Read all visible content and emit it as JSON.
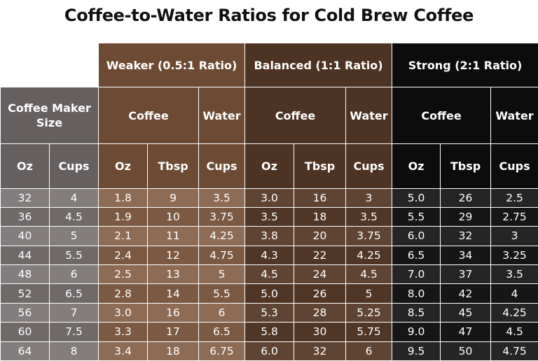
{
  "title": "Coffee-to-Water Ratios for Cold Brew Coffee",
  "colors": {
    "maker_header": "#665f5f",
    "maker_rows_a": "#847d7d",
    "maker_rows_b": "#706969",
    "weak_header": "#6c4a34",
    "weak_rows_a": "#8e6b55",
    "weak_rows_b": "#7b5943",
    "balanced_header": "#4d3323",
    "balanced_rows_a": "#5f4433",
    "balanced_rows_b": "#4f3627",
    "strong_header": "#0c0c0c",
    "strong_rows_a": "#252525",
    "strong_rows_b": "#161616"
  },
  "headers": {
    "groups": [
      "Weaker (0.5:1 Ratio)",
      "Balanced (1:1 Ratio)",
      "Strong (2:1 Ratio)"
    ],
    "maker_size": "Coffee Maker Size",
    "coffee": "Coffee",
    "water": "Water",
    "units": [
      "Oz",
      "Cups",
      "Oz",
      "Tbsp",
      "Cups",
      "Oz",
      "Tbsp",
      "Cups",
      "Oz",
      "Tbsp",
      "Cups"
    ]
  },
  "rows": [
    [
      "32",
      "4",
      "1.8",
      "9",
      "3.5",
      "3.0",
      "16",
      "3",
      "5.0",
      "26",
      "2.5"
    ],
    [
      "36",
      "4.5",
      "1.9",
      "10",
      "3.75",
      "3.5",
      "18",
      "3.5",
      "5.5",
      "29",
      "2.75"
    ],
    [
      "40",
      "5",
      "2.1",
      "11",
      "4.25",
      "3.8",
      "20",
      "3.75",
      "6.0",
      "32",
      "3"
    ],
    [
      "44",
      "5.5",
      "2.4",
      "12",
      "4.75",
      "4.3",
      "22",
      "4.25",
      "6.5",
      "34",
      "3.25"
    ],
    [
      "48",
      "6",
      "2.5",
      "13",
      "5",
      "4.5",
      "24",
      "4.5",
      "7.0",
      "37",
      "3.5"
    ],
    [
      "52",
      "6.5",
      "2.8",
      "14",
      "5.5",
      "5.0",
      "26",
      "5",
      "8.0",
      "42",
      "4"
    ],
    [
      "56",
      "7",
      "3.0",
      "16",
      "6",
      "5.3",
      "28",
      "5.25",
      "8.5",
      "45",
      "4.25"
    ],
    [
      "60",
      "7.5",
      "3.3",
      "17",
      "6.5",
      "5.8",
      "30",
      "5.75",
      "9.0",
      "47",
      "4.5"
    ],
    [
      "64",
      "8",
      "3.4",
      "18",
      "6.75",
      "6.0",
      "32",
      "6",
      "9.5",
      "50",
      "4.75"
    ]
  ]
}
